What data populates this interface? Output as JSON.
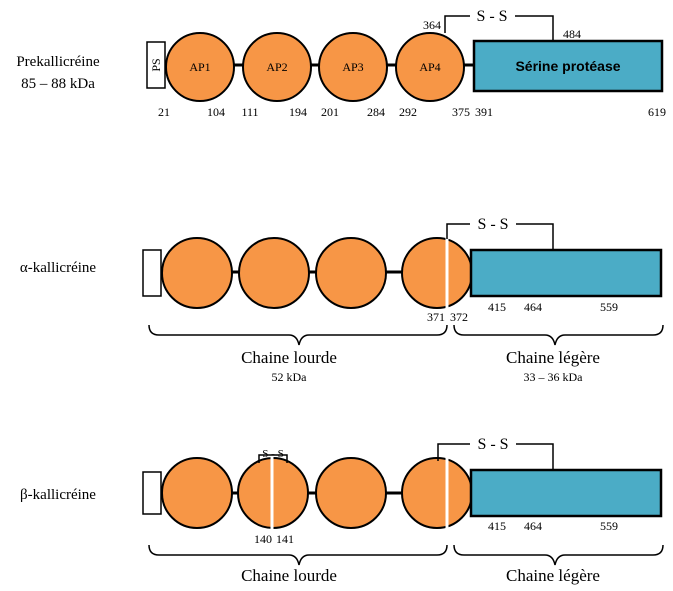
{
  "colors": {
    "domain": "#F79646",
    "protease": "#4BACC6",
    "outline": "#000000",
    "cleavage": "#ffffff"
  },
  "prekallikrein": {
    "name": "Prekallicréine",
    "mass": "85 – 88 kDa",
    "signal_peptide": "PS",
    "domains": [
      "AP1",
      "AP2",
      "AP3",
      "AP4"
    ],
    "protease": "Sérine protéase",
    "disulfide": "S - S",
    "positions": [
      "21",
      "104",
      "111",
      "194",
      "201",
      "284",
      "292",
      "375",
      "391",
      "619"
    ],
    "top_positions": [
      "364",
      "484"
    ]
  },
  "alpha": {
    "name": "α-kallicréine",
    "disulfide": "S - S",
    "cleavage_positions": [
      "371",
      "372"
    ],
    "light_positions": [
      "415",
      "464",
      "559"
    ],
    "heavy_chain": "Chaine lourde",
    "heavy_mass": "52 kDa",
    "light_chain": "Chaine légère",
    "light_mass": "33 – 36 kDa"
  },
  "beta": {
    "name": "β-kallicréine",
    "disulfide": "S - S",
    "inner_disulfide": "S - S",
    "cleavage_positions": [
      "140",
      "141"
    ],
    "light_positions": [
      "415",
      "464",
      "559"
    ],
    "heavy_chain": "Chaine lourde",
    "light_chain": "Chaine légère"
  }
}
